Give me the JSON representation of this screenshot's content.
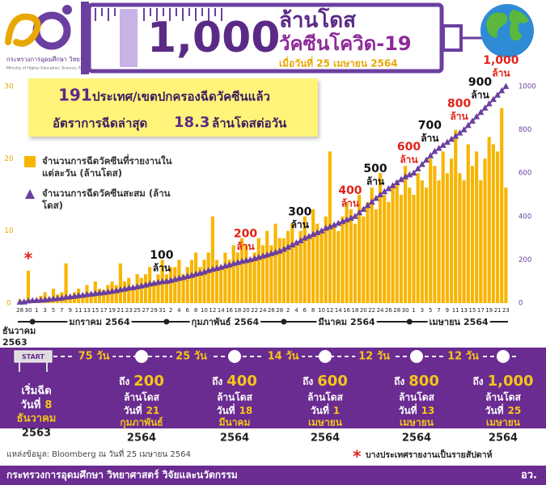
{
  "header": {
    "ministry_th": "กระทรวงการอุดมศึกษา วิทยาศาสตร์ วิจัยและนวัตกรรม",
    "ministry_en": "Ministry of Higher Education, Science, Research and Innovation",
    "headline_number": "1,000",
    "headline_unit": "ล้านโดส",
    "headline_subject": "วัคซีนโควิด-19",
    "date": "เมื่อวันที่ 25 เมษายน 2564"
  },
  "highlights": {
    "countries": "191",
    "countries_text": "ประเทศ/เขตปกครองฉีดวัคซีนแล้ว",
    "rate_prefix": "อัตราการฉีดล่าสุด",
    "rate": "18.3",
    "rate_unit": "ล้านโดสต่อวัน"
  },
  "chart_data": {
    "type": "bar",
    "categories": [
      "28",
      null,
      "30",
      null,
      "1",
      null,
      "3",
      null,
      "5",
      null,
      "7",
      null,
      "9",
      null,
      "11",
      null,
      "13",
      null,
      "15",
      null,
      "17",
      null,
      "19",
      null,
      "21",
      null,
      "23",
      null,
      "25",
      null,
      "27",
      null,
      "29",
      null,
      "31",
      null,
      "2",
      null,
      "4",
      null,
      "6",
      null,
      "8",
      null,
      "10",
      null,
      "12",
      null,
      "14",
      null,
      "16",
      null,
      "18",
      null,
      "20",
      null,
      "22",
      null,
      "24",
      null,
      "26",
      null,
      "28",
      null,
      "2",
      null,
      "4",
      null,
      "6",
      null,
      "8",
      null,
      "10",
      null,
      "12",
      null,
      "14",
      null,
      "16",
      null,
      "18",
      null,
      "20",
      null,
      "22",
      null,
      "24",
      null,
      "26",
      null,
      "28",
      null,
      "30",
      null,
      "1",
      null,
      "3",
      null,
      "5",
      null,
      "7",
      null,
      "9",
      null,
      "11",
      null,
      "13",
      null,
      "15",
      null,
      "17",
      null,
      "19",
      null,
      "21",
      null,
      "23"
    ],
    "months": [
      {
        "month": "ธันวาคม",
        "year": "2563"
      },
      {
        "month": "มกราคม",
        "year": "2564"
      },
      {
        "month": "กุมภาพันธ์",
        "year": "2564"
      },
      {
        "month": "มีนาคม",
        "year": "2564"
      },
      {
        "month": "เมษายน",
        "year": "2564"
      }
    ],
    "series": [
      {
        "name": "จำนวนการฉีดวัคซีนที่รายงานในแต่ละวัน (ล้านโดส)",
        "type": "bar",
        "color": "#f7b500",
        "axis": "y",
        "values": [
          0.5,
          0.4,
          4.5,
          0.3,
          0.5,
          1,
          1.5,
          0.8,
          2,
          1.2,
          1.5,
          5.5,
          1,
          1.5,
          2,
          1,
          2.5,
          1.5,
          3,
          2,
          1.8,
          2.5,
          3,
          2.5,
          5.5,
          3,
          3.5,
          2,
          4,
          3.5,
          4,
          5,
          3,
          4,
          6,
          4,
          5,
          5,
          6,
          4,
          5,
          6,
          7,
          5,
          6,
          7,
          12,
          6,
          5,
          7,
          6,
          8,
          7,
          9,
          8,
          6,
          7,
          9,
          8,
          10,
          8,
          11,
          9,
          9,
          10,
          11,
          8,
          10,
          12,
          9,
          13,
          11,
          10,
          12,
          21,
          11,
          10,
          12,
          14,
          13,
          11,
          15,
          12,
          14,
          16,
          13,
          18,
          15,
          14,
          16,
          17,
          15,
          19,
          16,
          15,
          18,
          17,
          16,
          20,
          19,
          17,
          21,
          18,
          20,
          24,
          18,
          17,
          22,
          19,
          21,
          17,
          20,
          23,
          22,
          21,
          27,
          16
        ]
      },
      {
        "name": "จำนวนการฉีดวัคซีนสะสม (ล้านโดส)",
        "type": "line",
        "color": "#6b3fa0",
        "axis": "y2",
        "values": [
          4,
          5,
          10,
          11,
          12,
          13,
          15,
          17,
          19,
          21,
          23,
          27,
          29,
          31,
          34,
          36,
          39,
          41,
          44,
          46,
          48,
          51,
          54,
          57,
          62,
          65,
          69,
          71,
          75,
          79,
          83,
          88,
          91,
          95,
          99,
          100,
          104,
          109,
          114,
          118,
          123,
          128,
          134,
          138,
          143,
          150,
          156,
          160,
          165,
          171,
          176,
          182,
          187,
          192,
          196,
          200,
          205,
          211,
          217,
          222,
          228,
          234,
          240,
          248,
          258,
          268,
          278,
          288,
          300,
          308,
          317,
          325,
          333,
          345,
          352,
          360,
          368,
          376,
          384,
          392,
          400,
          417,
          433,
          450,
          466,
          483,
          500,
          514,
          528,
          542,
          556,
          570,
          583,
          592,
          600,
          620,
          640,
          660,
          680,
          700,
          714,
          728,
          742,
          756,
          770,
          785,
          800,
          820,
          840,
          860,
          880,
          900,
          920,
          940,
          960,
          980,
          1000
        ]
      }
    ],
    "ylim": [
      0,
      30
    ],
    "yticks": [
      0,
      10,
      20,
      30
    ],
    "y2lim": [
      0,
      1000
    ],
    "y2ticks": [
      0,
      200,
      400,
      600,
      800,
      1000
    ],
    "grid": false,
    "milestones": [
      100,
      200,
      300,
      400,
      500,
      600,
      700,
      800,
      900,
      {
        "value": 1000,
        "label": "1,000"
      }
    ],
    "milestone_unit": "ล้าน",
    "milestone_colors": [
      "#111111",
      "#e2231a",
      "#111111",
      "#e2231a",
      "#111111",
      "#e2231a",
      "#111111",
      "#e2231a",
      "#111111",
      "#e2231a"
    ],
    "annotations": [
      {
        "text": "*",
        "at": "30",
        "color": "#e2231a"
      }
    ]
  },
  "timeline": {
    "start_sign": "START",
    "start": {
      "label": "เริ่มฉีด",
      "day_prefix": "วันที่",
      "day": "8",
      "month": "ธันวาคม",
      "year": "2563"
    },
    "intervals": [
      "75 วัน",
      "25 วัน",
      "14 วัน",
      "12 วัน",
      "12 วัน"
    ],
    "milestones": [
      {
        "prefix": "ถึง",
        "amount": "200",
        "unit": "ล้านโดส",
        "day_prefix": "วันที่",
        "day": "21",
        "month": "กุมภาพันธ์",
        "year": "2564"
      },
      {
        "prefix": "ถึง",
        "amount": "400",
        "unit": "ล้านโดส",
        "day_prefix": "วันที่",
        "day": "18",
        "month": "มีนาคม",
        "year": "2564"
      },
      {
        "prefix": "ถึง",
        "amount": "600",
        "unit": "ล้านโดส",
        "day_prefix": "วันที่",
        "day": "1",
        "month": "เมษายน",
        "year": "2564"
      },
      {
        "prefix": "ถึง",
        "amount": "800",
        "unit": "ล้านโดส",
        "day_prefix": "วันที่",
        "day": "13",
        "month": "เมษายน",
        "year": "2564"
      },
      {
        "prefix": "ถึง",
        "amount": "1,000",
        "unit": "ล้านโดส",
        "day_prefix": "วันที่",
        "day": "25",
        "month": "เมษายน",
        "year": "2564"
      }
    ]
  },
  "footer": {
    "source": "แหล่งข้อมูล: Bloomberg ณ วันที่ 25 เมษายน 2564",
    "note_mark": "*",
    "note": "บางประเทศรายงานเป็นรายสัปดาห์",
    "ministry": "กระทรวงการอุดมศึกษา วิทยาศาสตร์ วิจัยและนวัตกรรม",
    "ministry_short": "อว."
  }
}
